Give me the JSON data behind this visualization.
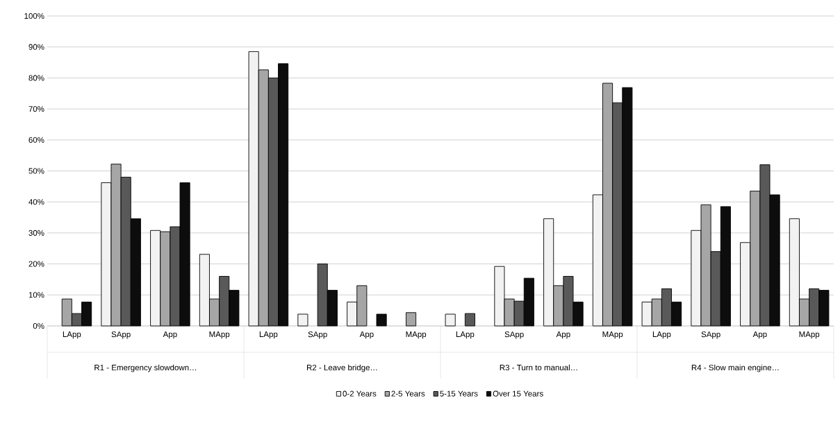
{
  "chart_data": {
    "type": "bar",
    "categories": [
      "LApp",
      "SApp",
      "App",
      "MApp",
      "LApp",
      "SApp",
      "App",
      "MApp",
      "LApp",
      "SApp",
      "App",
      "MApp",
      "LApp",
      "SApp",
      "App",
      "MApp"
    ],
    "annotations": [
      "R1 - Emergency slowdown…",
      "R2 - Leave bridge…",
      "R3 - Turn to manual…",
      "R4 - Slow main engine…"
    ],
    "series": [
      {
        "name": "0-2 Years",
        "color": "#f2f2f2",
        "values": [
          null,
          46.2,
          30.8,
          23.1,
          88.5,
          3.8,
          7.7,
          null,
          3.8,
          19.2,
          34.6,
          42.3,
          7.7,
          30.8,
          26.9,
          34.6
        ]
      },
      {
        "name": "2-5 Years",
        "color": "#a6a6a6",
        "values": [
          8.7,
          52.2,
          30.4,
          8.7,
          82.6,
          null,
          13,
          4.3,
          null,
          8.7,
          13,
          78.3,
          8.7,
          39.1,
          43.5,
          8.7
        ]
      },
      {
        "name": "5-15 Years",
        "color": "#595959",
        "values": [
          4,
          48,
          32,
          16,
          80,
          20,
          null,
          null,
          4,
          8,
          16,
          72,
          12,
          24,
          52,
          12
        ]
      },
      {
        "name": "Over 15 Years",
        "color": "#0d0d0d",
        "values": [
          7.7,
          34.6,
          46.2,
          11.5,
          84.6,
          11.5,
          3.8,
          null,
          null,
          15.4,
          7.7,
          76.9,
          7.7,
          38.5,
          42.3,
          11.5
        ]
      }
    ],
    "ylim": [
      0,
      100
    ],
    "yticks": [
      {
        "value": 0,
        "label": "0%"
      },
      {
        "value": 10,
        "label": "10%"
      },
      {
        "value": 20,
        "label": "20%"
      },
      {
        "value": 30,
        "label": "30%"
      },
      {
        "value": 40,
        "label": "40%"
      },
      {
        "value": 50,
        "label": "50%"
      },
      {
        "value": 60,
        "label": "60%"
      },
      {
        "value": 70,
        "label": "70%"
      },
      {
        "value": 80,
        "label": "80%"
      },
      {
        "value": 90,
        "label": "90%"
      },
      {
        "value": 100,
        "label": "100%"
      }
    ],
    "grid": "y",
    "legend": "bottom"
  }
}
